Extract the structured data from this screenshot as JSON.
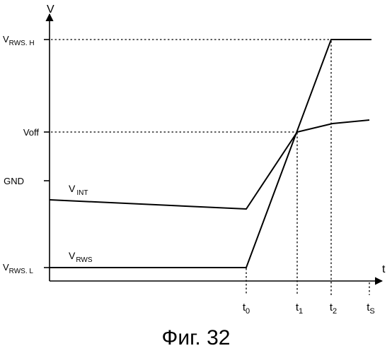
{
  "axes": {
    "y_label": "V",
    "x_label": "t"
  },
  "y_levels": {
    "rws_high": {
      "main": "V",
      "sub": "RWS. H"
    },
    "voff": "Voff",
    "gnd": "GND",
    "rws_low": {
      "main": "V",
      "sub": "RWS. L"
    }
  },
  "time_marks": [
    {
      "main": "t",
      "sub": "0"
    },
    {
      "main": "t",
      "sub": "1"
    },
    {
      "main": "t",
      "sub": "2"
    },
    {
      "main": "t",
      "sub": "S"
    }
  ],
  "curves": {
    "v_int": {
      "main": "V",
      "sub": "INT"
    },
    "v_rws": {
      "main": "V",
      "sub": "RWS"
    }
  },
  "caption": "Фиг. 32"
}
